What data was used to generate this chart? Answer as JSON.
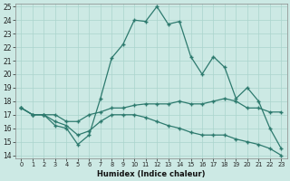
{
  "xlabel": "Humidex (Indice chaleur)",
  "ylabel": "",
  "background_color": "#cce9e4",
  "grid_color": "#aad4cc",
  "line_color": "#2d7a6e",
  "xlim": [
    -0.5,
    23.5
  ],
  "ylim": [
    13.8,
    25.2
  ],
  "xticks": [
    0,
    1,
    2,
    3,
    4,
    5,
    6,
    7,
    8,
    9,
    10,
    11,
    12,
    13,
    14,
    15,
    16,
    17,
    18,
    19,
    20,
    21,
    22,
    23
  ],
  "yticks": [
    14,
    15,
    16,
    17,
    18,
    19,
    20,
    21,
    22,
    23,
    24,
    25
  ],
  "line1_x": [
    0,
    1,
    2,
    3,
    4,
    5,
    6,
    7,
    8,
    9,
    10,
    11,
    12,
    13,
    14,
    15,
    16,
    17,
    18,
    19,
    20,
    21,
    22,
    23
  ],
  "line1_y": [
    17.5,
    17.0,
    17.0,
    16.2,
    16.0,
    14.8,
    15.5,
    18.2,
    21.2,
    22.2,
    24.0,
    23.9,
    25.0,
    23.7,
    23.9,
    21.3,
    20.0,
    21.3,
    20.5,
    18.2,
    19.0,
    18.0,
    16.0,
    14.5
  ],
  "line2_x": [
    0,
    1,
    2,
    3,
    4,
    5,
    6,
    7,
    8,
    9,
    10,
    11,
    12,
    13,
    14,
    15,
    16,
    17,
    18,
    19,
    20,
    21,
    22,
    23
  ],
  "line2_y": [
    17.5,
    17.0,
    17.0,
    17.0,
    16.5,
    16.5,
    17.0,
    17.2,
    17.5,
    17.5,
    17.7,
    17.8,
    17.8,
    17.8,
    18.0,
    17.8,
    17.8,
    18.0,
    18.2,
    18.0,
    17.5,
    17.5,
    17.2,
    17.2
  ],
  "line3_x": [
    0,
    1,
    2,
    3,
    4,
    5,
    6,
    7,
    8,
    9,
    10,
    11,
    12,
    13,
    14,
    15,
    16,
    17,
    18,
    19,
    20,
    21,
    22,
    23
  ],
  "line3_y": [
    17.5,
    17.0,
    17.0,
    16.5,
    16.2,
    15.5,
    15.8,
    16.5,
    17.0,
    17.0,
    17.0,
    16.8,
    16.5,
    16.2,
    16.0,
    15.7,
    15.5,
    15.5,
    15.5,
    15.2,
    15.0,
    14.8,
    14.5,
    14.0
  ]
}
